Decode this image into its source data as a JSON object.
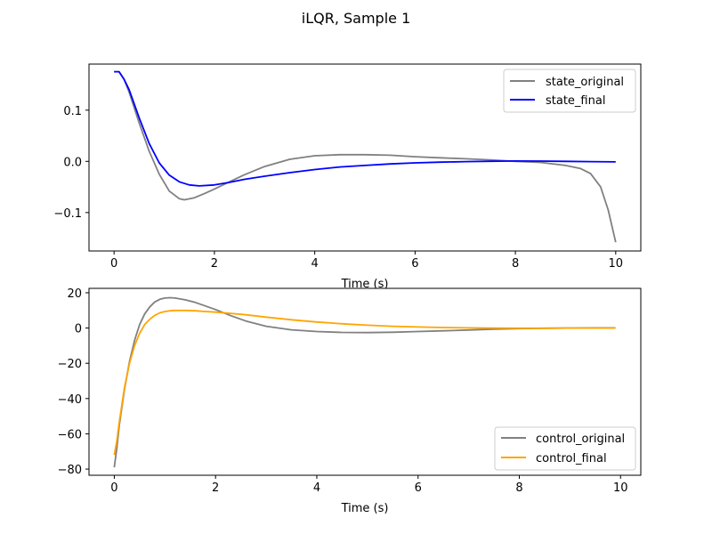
{
  "title": "iLQR, Sample 1",
  "chart_data": [
    {
      "type": "line",
      "xlabel": "Time (s)",
      "ylabel": "",
      "xlim": [
        -0.5,
        10.5
      ],
      "ylim": [
        -0.175,
        0.19
      ],
      "xticks": [
        0,
        2,
        4,
        6,
        8,
        10
      ],
      "xtick_labels": [
        "0",
        "2",
        "4",
        "6",
        "8",
        "10"
      ],
      "yticks": [
        -0.1,
        0.0,
        0.1
      ],
      "ytick_labels": [
        "−0.1",
        "0.0",
        "0.1"
      ],
      "grid": false,
      "legend_position": "upper-right",
      "series": [
        {
          "name": "state_original",
          "color": "#808080",
          "x": [
            0,
            0.1,
            0.2,
            0.3,
            0.5,
            0.7,
            0.9,
            1.1,
            1.3,
            1.4,
            1.6,
            1.8,
            2.0,
            2.3,
            2.6,
            3.0,
            3.5,
            4.0,
            4.5,
            5.0,
            5.5,
            6.0,
            6.5,
            7.0,
            7.5,
            8.0,
            8.5,
            9.0,
            9.3,
            9.5,
            9.7,
            9.85,
            10.0
          ],
          "y": [
            0.175,
            0.175,
            0.16,
            0.135,
            0.075,
            0.02,
            -0.025,
            -0.058,
            -0.073,
            -0.075,
            -0.071,
            -0.063,
            -0.054,
            -0.04,
            -0.026,
            -0.01,
            0.004,
            0.011,
            0.013,
            0.013,
            0.012,
            0.009,
            0.007,
            0.005,
            0.003,
            0.0,
            -0.002,
            -0.008,
            -0.014,
            -0.024,
            -0.05,
            -0.095,
            -0.158
          ]
        },
        {
          "name": "state_final",
          "color": "#0000ff",
          "x": [
            0,
            0.1,
            0.2,
            0.3,
            0.5,
            0.7,
            0.9,
            1.1,
            1.3,
            1.5,
            1.7,
            2.0,
            2.3,
            2.6,
            3.0,
            3.5,
            4.0,
            4.5,
            5.0,
            5.5,
            6.0,
            6.5,
            7.0,
            7.5,
            8.0,
            8.5,
            9.0,
            9.5,
            10.0
          ],
          "y": [
            0.175,
            0.175,
            0.16,
            0.14,
            0.085,
            0.035,
            -0.003,
            -0.027,
            -0.04,
            -0.046,
            -0.048,
            -0.046,
            -0.041,
            -0.035,
            -0.029,
            -0.022,
            -0.016,
            -0.011,
            -0.008,
            -0.005,
            -0.003,
            -0.0015,
            -0.0005,
            0.0002,
            0.0008,
            0.0005,
            0.0,
            -0.0005,
            -0.001
          ]
        }
      ]
    },
    {
      "type": "line",
      "xlabel": "Time (s)",
      "ylabel": "",
      "xlim": [
        -0.5,
        10.4
      ],
      "ylim": [
        -83.5,
        22.5
      ],
      "xticks": [
        0,
        2,
        4,
        6,
        8,
        10
      ],
      "xtick_labels": [
        "0",
        "2",
        "4",
        "6",
        "8",
        "10"
      ],
      "yticks": [
        -80,
        -60,
        -40,
        -20,
        0,
        20
      ],
      "ytick_labels": [
        "−80",
        "−60",
        "−40",
        "−20",
        "0",
        "20"
      ],
      "grid": false,
      "legend_position": "lower-right",
      "series": [
        {
          "name": "control_original",
          "color": "#808080",
          "x": [
            0,
            0.05,
            0.1,
            0.2,
            0.3,
            0.4,
            0.5,
            0.6,
            0.7,
            0.8,
            0.9,
            1.0,
            1.1,
            1.2,
            1.4,
            1.6,
            1.8,
            2.0,
            2.3,
            2.6,
            3.0,
            3.5,
            4.0,
            4.5,
            5.0,
            5.5,
            6.0,
            6.5,
            7.0,
            7.5,
            8.0,
            8.5,
            9.0,
            9.5,
            9.9
          ],
          "y": [
            -79,
            -68,
            -55,
            -35,
            -19,
            -7,
            2,
            8,
            12,
            14.8,
            16.3,
            17,
            17.2,
            17,
            16,
            14.5,
            12.5,
            10.5,
            7,
            4,
            1,
            -1,
            -2,
            -2.5,
            -2.6,
            -2.4,
            -2,
            -1.6,
            -1.1,
            -0.6,
            -0.3,
            -0.1,
            0,
            0.1,
            0.1
          ]
        },
        {
          "name": "control_final",
          "color": "#ffa500",
          "x": [
            0,
            0.05,
            0.1,
            0.2,
            0.3,
            0.4,
            0.5,
            0.6,
            0.7,
            0.8,
            0.9,
            1.0,
            1.1,
            1.2,
            1.4,
            1.6,
            1.8,
            2.0,
            2.3,
            2.6,
            3.0,
            3.5,
            4.0,
            4.5,
            5.0,
            5.5,
            6.0,
            6.5,
            7.0,
            7.5,
            8.0,
            8.5,
            9.0,
            9.5,
            9.9
          ],
          "y": [
            -72,
            -64,
            -53,
            -34,
            -20,
            -10,
            -3,
            2,
            5,
            7.2,
            8.6,
            9.4,
            9.8,
            10,
            10,
            9.8,
            9.4,
            9,
            8.3,
            7.5,
            6.2,
            4.7,
            3.4,
            2.4,
            1.6,
            1,
            0.6,
            0.3,
            0.1,
            0,
            -0.1,
            -0.1,
            0,
            0,
            0
          ]
        }
      ]
    }
  ]
}
